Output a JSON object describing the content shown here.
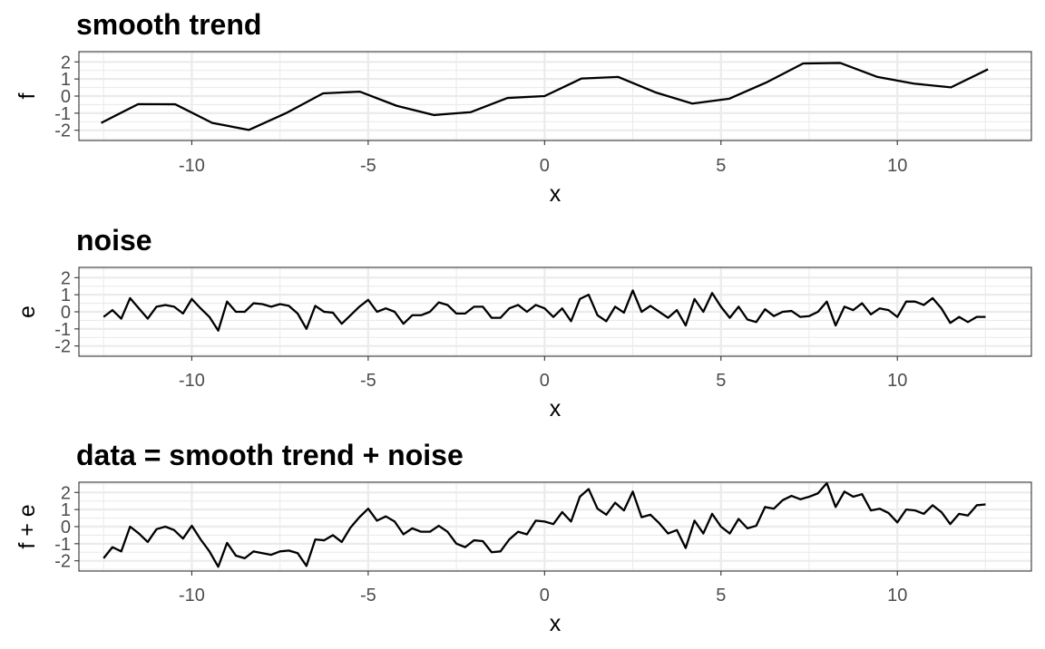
{
  "chart_data": [
    {
      "type": "line",
      "title": "smooth trend",
      "xlabel": "x",
      "ylabel": "f",
      "xlim": [
        -13.2,
        13.8
      ],
      "ylim": [
        -2.6,
        2.6
      ],
      "xticks": [
        -10,
        -5,
        0,
        5,
        10
      ],
      "yticks": [
        2,
        1,
        0,
        -1,
        -2
      ],
      "xtick_labels": [
        "-10",
        "-5",
        "0",
        "5",
        "10"
      ],
      "ytick_labels": [
        "2",
        "1",
        "0",
        "-1",
        "-2"
      ],
      "grid": true,
      "line_color": "#000000",
      "series": [
        {
          "x": [
            -12.57,
            -11.52,
            -10.47,
            -9.42,
            -8.38,
            -7.33,
            -6.28,
            -5.24,
            -4.19,
            -3.14,
            -2.09,
            -1.05,
            0,
            1.05,
            2.09,
            3.14,
            4.19,
            5.24,
            6.28,
            7.33,
            8.38,
            9.42,
            10.47,
            11.52,
            12.57
          ],
          "values": [
            -1.57,
            -0.47,
            -0.48,
            -1.57,
            -1.98,
            -1.0,
            0.16,
            0.26,
            -0.57,
            -1.11,
            -0.94,
            -0.11,
            0.0,
            1.03,
            1.12,
            0.22,
            -0.44,
            -0.15,
            0.79,
            1.91,
            1.94,
            1.13,
            0.73,
            0.51,
            1.57
          ]
        }
      ]
    },
    {
      "type": "line",
      "title": "noise",
      "xlabel": "x",
      "ylabel": "e",
      "xlim": [
        -13.2,
        13.8
      ],
      "ylim": [
        -2.6,
        2.6
      ],
      "xticks": [
        -10,
        -5,
        0,
        5,
        10
      ],
      "yticks": [
        2,
        1,
        0,
        -1,
        -2
      ],
      "xtick_labels": [
        "-10",
        "-5",
        "0",
        "5",
        "10"
      ],
      "ytick_labels": [
        "2",
        "1",
        "0",
        "-1",
        "-2"
      ],
      "grid": true,
      "line_color": "#000000",
      "series": [
        {
          "x": [
            -12.5,
            -12.25,
            -12.0,
            -11.75,
            -11.5,
            -11.25,
            -11.0,
            -10.75,
            -10.5,
            -10.25,
            -10.0,
            -9.75,
            -9.5,
            -9.25,
            -9.0,
            -8.75,
            -8.5,
            -8.25,
            -8.0,
            -7.75,
            -7.5,
            -7.25,
            -7.0,
            -6.75,
            -6.5,
            -6.25,
            -6.0,
            -5.75,
            -5.5,
            -5.25,
            -5.0,
            -4.75,
            -4.5,
            -4.25,
            -4.0,
            -3.75,
            -3.5,
            -3.25,
            -3.0,
            -2.75,
            -2.5,
            -2.25,
            -2.0,
            -1.75,
            -1.5,
            -1.25,
            -1.0,
            -0.75,
            -0.5,
            -0.25,
            0.0,
            0.25,
            0.5,
            0.75,
            1.0,
            1.25,
            1.5,
            1.75,
            2.0,
            2.25,
            2.5,
            2.75,
            3.0,
            3.25,
            3.5,
            3.75,
            4.0,
            4.25,
            4.5,
            4.75,
            5.0,
            5.25,
            5.5,
            5.75,
            6.0,
            6.25,
            6.5,
            6.75,
            7.0,
            7.25,
            7.5,
            7.75,
            8.0,
            8.25,
            8.5,
            8.75,
            9.0,
            9.25,
            9.5,
            9.75,
            10.0,
            10.25,
            10.5,
            10.75,
            11.0,
            11.25,
            11.5,
            11.75,
            12.0,
            12.25,
            12.5
          ],
          "values": [
            -0.3,
            0.1,
            -0.4,
            0.8,
            0.2,
            -0.4,
            0.3,
            0.4,
            0.3,
            -0.1,
            0.75,
            0.2,
            -0.3,
            -1.1,
            0.6,
            0.0,
            0.0,
            0.5,
            0.45,
            0.3,
            0.45,
            0.35,
            -0.1,
            -1.0,
            0.35,
            0.0,
            -0.05,
            -0.7,
            -0.2,
            0.3,
            0.7,
            0.0,
            0.2,
            0.0,
            -0.7,
            -0.2,
            -0.2,
            0.0,
            0.55,
            0.4,
            -0.1,
            -0.1,
            0.3,
            0.3,
            -0.35,
            -0.35,
            0.2,
            0.4,
            0.0,
            0.4,
            0.2,
            -0.3,
            0.2,
            -0.55,
            0.75,
            1.0,
            -0.2,
            -0.55,
            0.3,
            -0.05,
            1.25,
            0.0,
            0.35,
            0.0,
            -0.35,
            0.1,
            -0.8,
            0.75,
            0.0,
            1.1,
            0.3,
            -0.35,
            0.3,
            -0.45,
            -0.6,
            0.15,
            -0.25,
            0.0,
            0.05,
            -0.3,
            -0.25,
            0.0,
            0.6,
            -0.8,
            0.3,
            0.1,
            0.5,
            -0.15,
            0.2,
            0.1,
            -0.3,
            0.6,
            0.6,
            0.4,
            0.8,
            0.2,
            -0.65,
            -0.3,
            -0.6,
            -0.3,
            -0.3
          ]
        }
      ]
    },
    {
      "type": "line",
      "title": "data = smooth trend + noise",
      "xlabel": "x",
      "ylabel": "f + e",
      "xlim": [
        -13.2,
        13.8
      ],
      "ylim": [
        -2.6,
        2.6
      ],
      "xticks": [
        -10,
        -5,
        0,
        5,
        10
      ],
      "yticks": [
        2,
        1,
        0,
        -1,
        -2
      ],
      "xtick_labels": [
        "-10",
        "-5",
        "0",
        "5",
        "10"
      ],
      "ytick_labels": [
        "2",
        "1",
        "0",
        "-1",
        "-2"
      ],
      "grid": true,
      "line_color": "#000000",
      "series": [
        {
          "x": [
            -12.5,
            -12.25,
            -12.0,
            -11.75,
            -11.5,
            -11.25,
            -11.0,
            -10.75,
            -10.5,
            -10.25,
            -10.0,
            -9.75,
            -9.5,
            -9.25,
            -9.0,
            -8.75,
            -8.5,
            -8.25,
            -8.0,
            -7.75,
            -7.5,
            -7.25,
            -7.0,
            -6.75,
            -6.5,
            -6.25,
            -6.0,
            -5.75,
            -5.5,
            -5.25,
            -5.0,
            -4.75,
            -4.5,
            -4.25,
            -4.0,
            -3.75,
            -3.5,
            -3.25,
            -3.0,
            -2.75,
            -2.5,
            -2.25,
            -2.0,
            -1.75,
            -1.5,
            -1.25,
            -1.0,
            -0.75,
            -0.5,
            -0.25,
            0.0,
            0.25,
            0.5,
            0.75,
            1.0,
            1.25,
            1.5,
            1.75,
            2.0,
            2.25,
            2.5,
            2.75,
            3.0,
            3.25,
            3.5,
            3.75,
            4.0,
            4.25,
            4.5,
            4.75,
            5.0,
            5.25,
            5.5,
            5.75,
            6.0,
            6.25,
            6.5,
            6.75,
            7.0,
            7.25,
            7.5,
            7.75,
            8.0,
            8.25,
            8.5,
            8.75,
            9.0,
            9.25,
            9.5,
            9.75,
            10.0,
            10.25,
            10.5,
            10.75,
            11.0,
            11.25,
            11.5,
            11.75,
            12.0,
            12.25,
            12.5
          ],
          "values": [
            -1.85,
            -1.2,
            -1.45,
            0.0,
            -0.4,
            -0.9,
            -0.15,
            0.0,
            -0.2,
            -0.7,
            0.05,
            -0.75,
            -1.45,
            -2.35,
            -0.95,
            -1.7,
            -1.85,
            -1.45,
            -1.55,
            -1.65,
            -1.45,
            -1.4,
            -1.55,
            -2.3,
            -0.75,
            -0.8,
            -0.5,
            -0.9,
            -0.05,
            0.55,
            1.05,
            0.35,
            0.6,
            0.3,
            -0.45,
            -0.1,
            -0.3,
            -0.3,
            0.05,
            -0.3,
            -1.0,
            -1.2,
            -0.8,
            -0.85,
            -1.5,
            -1.45,
            -0.75,
            -0.3,
            -0.45,
            0.35,
            0.3,
            0.15,
            0.85,
            0.3,
            1.75,
            2.2,
            1.05,
            0.7,
            1.4,
            0.95,
            2.05,
            0.55,
            0.7,
            0.2,
            -0.4,
            -0.2,
            -1.25,
            0.35,
            -0.4,
            0.75,
            0.0,
            -0.4,
            0.45,
            -0.1,
            0.05,
            1.15,
            1.05,
            1.55,
            1.8,
            1.6,
            1.75,
            1.95,
            2.55,
            1.15,
            2.05,
            1.75,
            1.9,
            0.95,
            1.05,
            0.8,
            0.25,
            1.0,
            0.95,
            0.75,
            1.25,
            0.85,
            0.15,
            0.75,
            0.65,
            1.25,
            1.3
          ]
        }
      ]
    }
  ]
}
